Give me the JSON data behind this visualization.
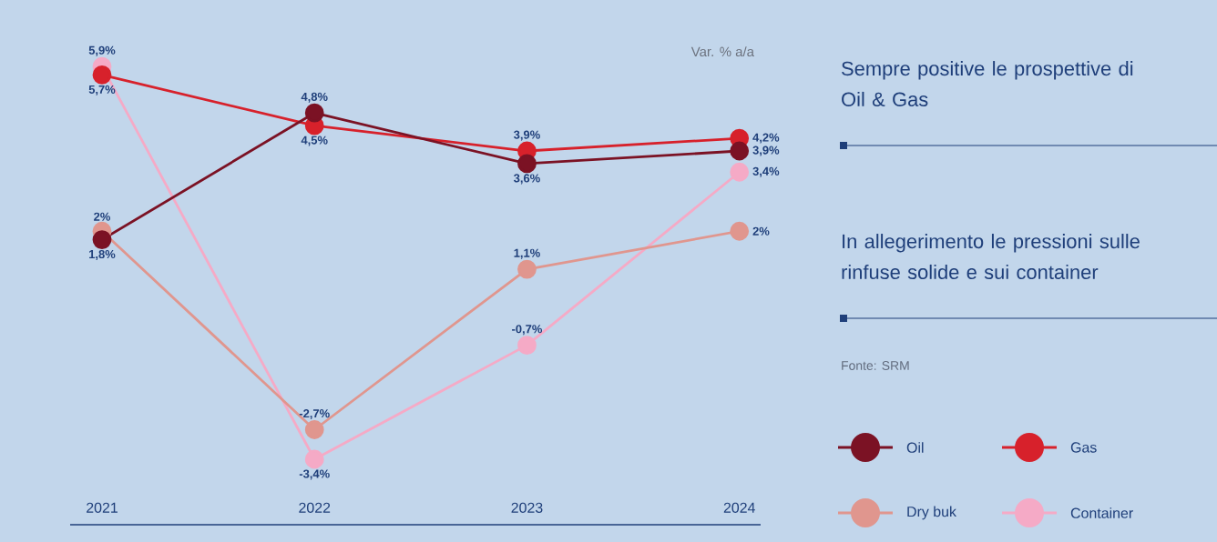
{
  "chart_data": {
    "type": "line",
    "ylabel": "Var. % a/a",
    "categories": [
      "2021",
      "2022",
      "2023",
      "2024"
    ],
    "series": [
      {
        "name": "Oil",
        "color": "#7b1224",
        "values": [
          1.8,
          4.8,
          3.6,
          3.9
        ],
        "value_labels": [
          "1,8%",
          "4,8%",
          "3,6%",
          "3,9%"
        ]
      },
      {
        "name": "Gas",
        "color": "#d7212b",
        "values": [
          5.7,
          4.5,
          3.9,
          4.2
        ],
        "value_labels": [
          "5,7%",
          "4,5%",
          "3,9%",
          "4,2%"
        ]
      },
      {
        "name": "Dry buk",
        "color": "#e0968e",
        "values": [
          2,
          -2.7,
          1.1,
          2
        ],
        "value_labels": [
          "2%",
          "-2,7%",
          "1,1%",
          "2%"
        ]
      },
      {
        "name": "Container",
        "color": "#f5aac6",
        "values": [
          5.9,
          -3.4,
          -0.7,
          3.4
        ],
        "value_labels": [
          "5,9%",
          "-3,4%",
          "-0,7%",
          "3,4%"
        ]
      }
    ],
    "annotations": [
      "Sempre positive le prospettive di Oil & Gas",
      "In allegerimento le pressioni sulle rinfuse solide e sui container",
      "Fonte: SRM"
    ],
    "marker": "circle",
    "legend": "right",
    "grid": false
  }
}
